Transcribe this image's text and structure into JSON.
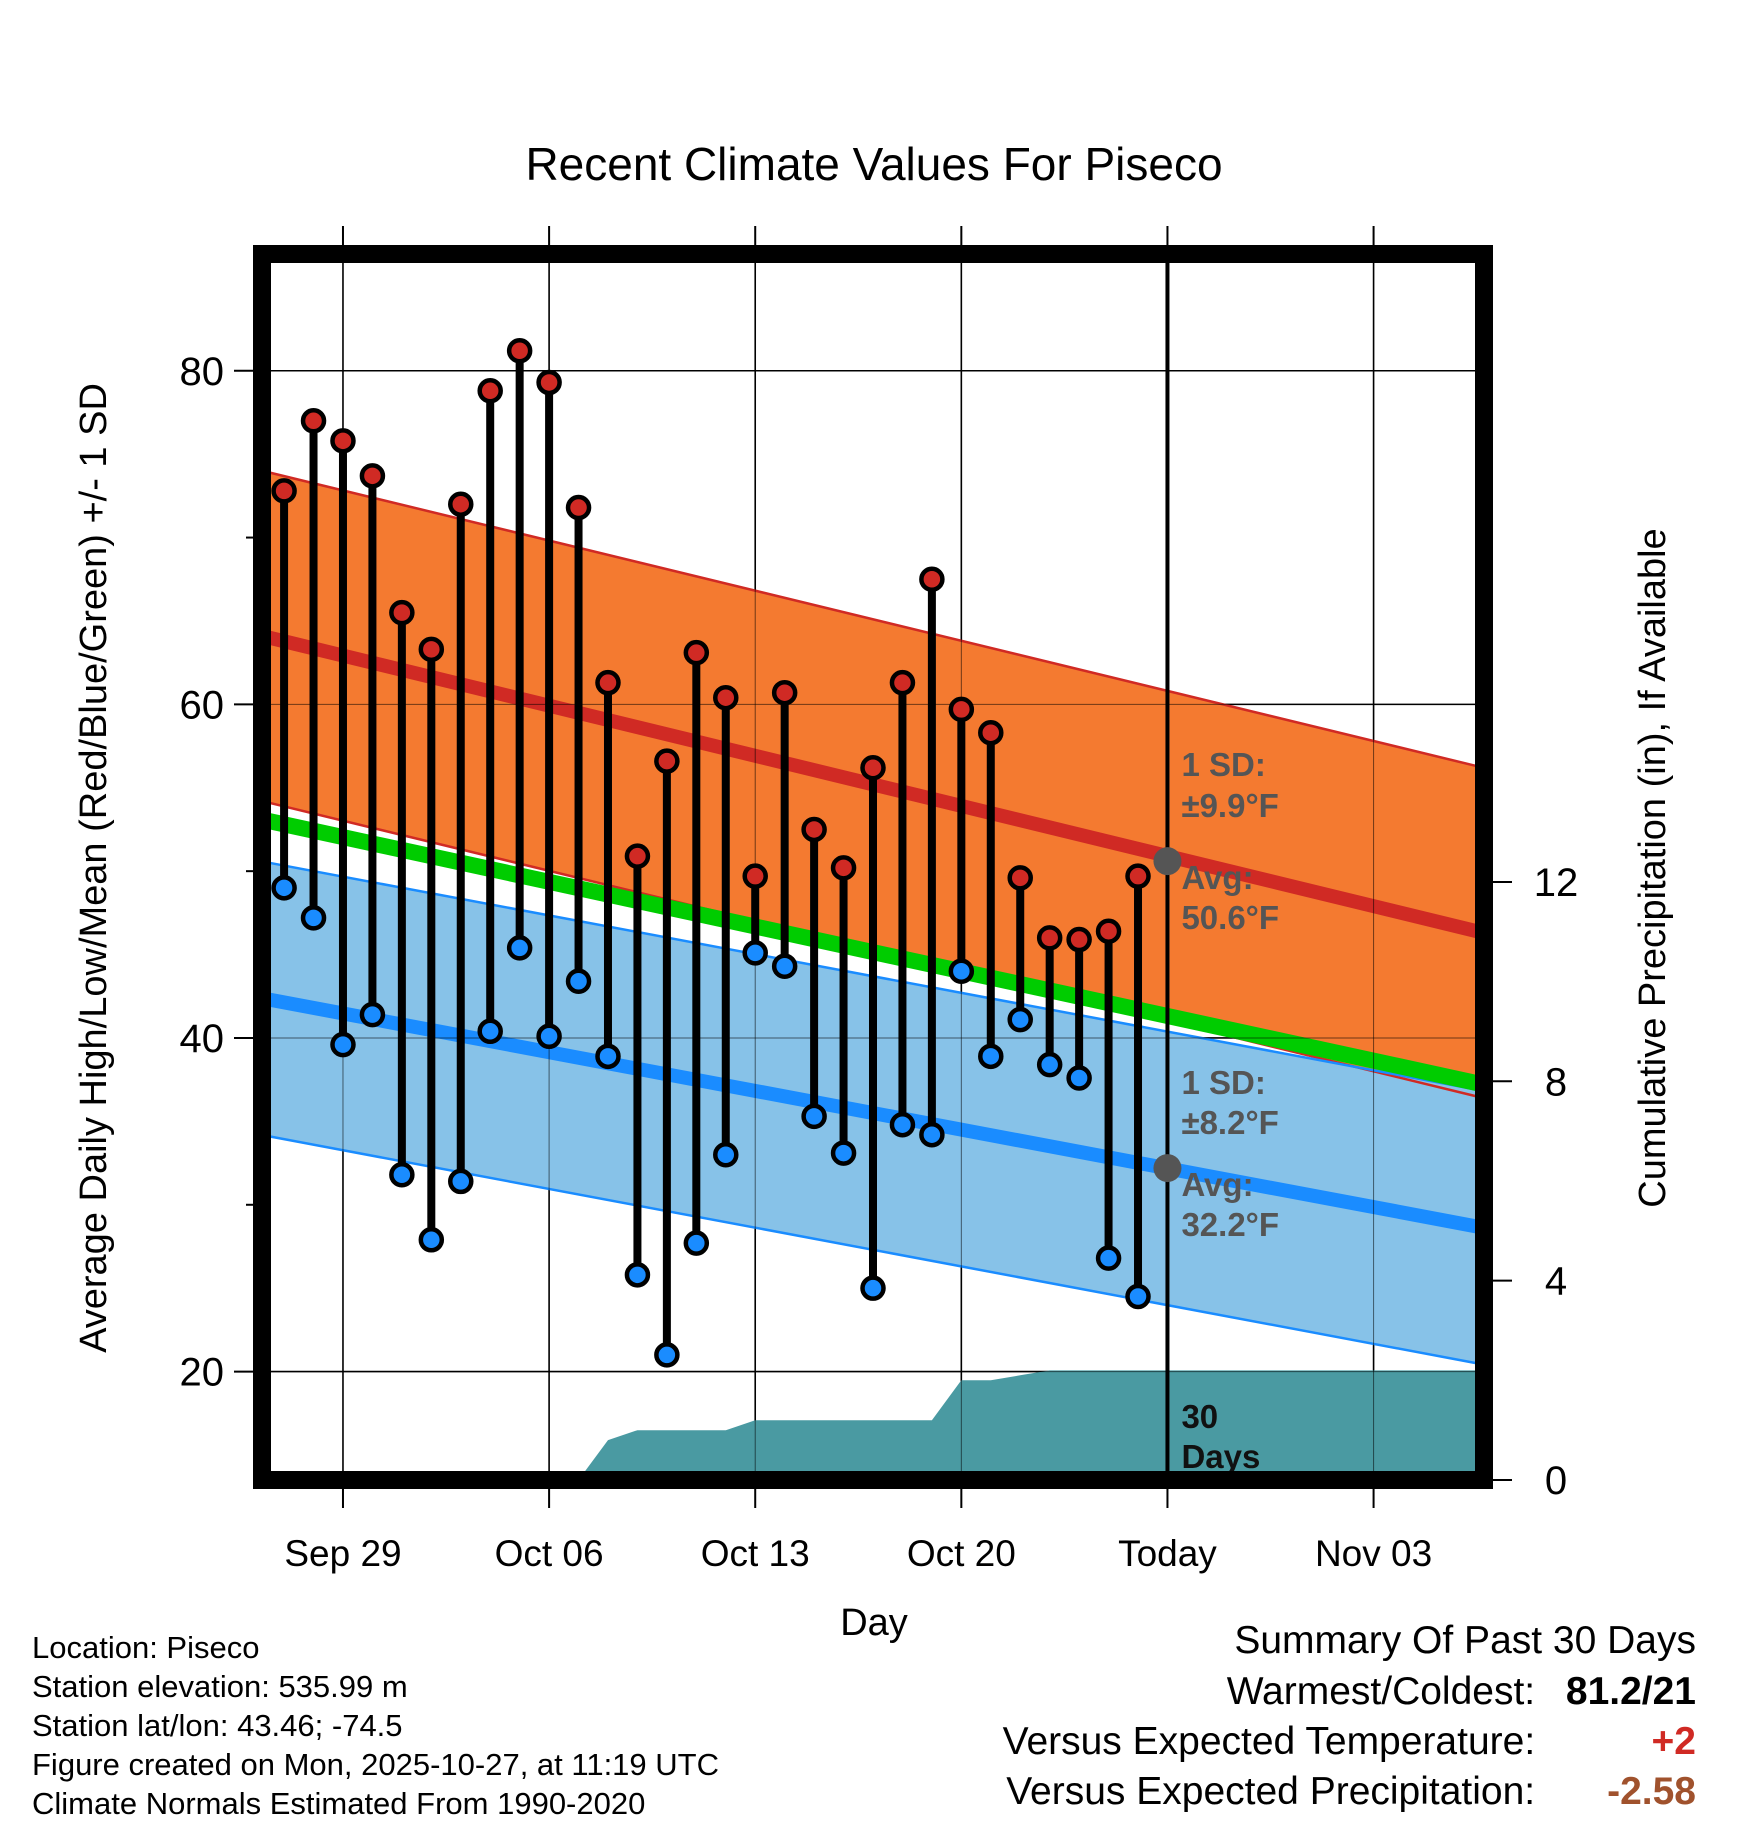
{
  "chart_data": {
    "type": "line",
    "title": "Recent Climate Values For Piseco",
    "xlabel": "Day",
    "ylabel": "Average Daily High/Low/Mean (Red/Blue/Green) +/- 1 SD",
    "ylabel_right": "Cumulative Precipitation (in), If Available",
    "ylim": [
      13.5,
      87
    ],
    "y_ticks": [
      20,
      40,
      60,
      80
    ],
    "y_minor_ticks": [
      30,
      50,
      70
    ],
    "y2lim": [
      0,
      24.6
    ],
    "y2_ticks": [
      0,
      4,
      8,
      12
    ],
    "xlim": [
      -2.75,
      38.75
    ],
    "x_ticks": [
      {
        "day": 0,
        "label": "Sep 29"
      },
      {
        "day": 7,
        "label": "Oct 06"
      },
      {
        "day": 14,
        "label": "Oct 13"
      },
      {
        "day": 21,
        "label": "Oct 20"
      },
      {
        "day": 28,
        "label": "Today"
      },
      {
        "day": 35,
        "label": "Nov 03"
      }
    ],
    "today_day": 28,
    "highs": [
      72.8,
      77.0,
      75.8,
      73.7,
      65.5,
      63.3,
      72.0,
      78.8,
      81.2,
      79.3,
      71.8,
      61.3,
      50.9,
      56.6,
      63.1,
      60.4,
      49.7,
      60.7,
      52.5,
      50.2,
      56.2,
      61.3,
      67.5,
      59.7,
      58.3,
      49.6,
      46.0,
      45.9,
      46.4,
      49.7
    ],
    "lows": [
      49.0,
      47.2,
      39.6,
      41.4,
      31.8,
      27.9,
      31.4,
      40.4,
      45.4,
      40.1,
      43.4,
      38.9,
      25.8,
      21.0,
      27.7,
      33.0,
      45.1,
      44.3,
      35.3,
      33.1,
      25.0,
      34.8,
      34.2,
      44.0,
      38.9,
      41.1,
      38.4,
      37.6,
      26.8,
      24.5
    ],
    "normal_high_avg": [
      64.0,
      46.4
    ],
    "normal_high_sd": 9.9,
    "normal_low_avg": [
      42.3,
      28.7
    ],
    "normal_low_sd": 8.2,
    "normal_mean": [
      53.0,
      37.3
    ],
    "precip_x": [
      -2.5,
      8,
      9,
      10,
      11,
      12,
      13,
      14,
      15,
      16,
      17,
      18,
      19,
      20,
      21,
      22,
      23,
      24,
      25,
      26,
      27,
      28,
      38.5
    ],
    "precip_cum": [
      0,
      0,
      0.8,
      1.0,
      1.0,
      1.0,
      1.0,
      1.2,
      1.2,
      1.2,
      1.2,
      1.2,
      1.2,
      1.2,
      2.0,
      2.0,
      2.1,
      2.2,
      2.2,
      2.2,
      2.2,
      2.2,
      2.2
    ],
    "annotations": {
      "high_sd_title": "1 SD:",
      "high_sd_value": "±9.9°F",
      "high_avg_title": "Avg:",
      "high_avg_value": "50.6°F",
      "high_avg_point": 50.6,
      "low_sd_title": "1 SD:",
      "low_sd_value": "±8.2°F",
      "low_avg_title": "Avg:",
      "low_avg_value": "32.2°F",
      "low_avg_point": 32.2,
      "days_line1": "30",
      "days_line2": "Days"
    },
    "colors": {
      "high_band": "#f47a30",
      "high_line": "#d02a24",
      "low_band": "#87c2e8",
      "low_line": "#1a8cff",
      "mean_line": "#00cc00",
      "precip": "#4a9aa2",
      "high_dot": "#d02a24",
      "low_dot": "#1a8cff",
      "annotation": "#555555",
      "avg_point": "#555555"
    }
  },
  "footer": {
    "location": "Location: Piseco",
    "elevation": "Station elevation: 535.99 m",
    "latlon": "Station lat/lon: 43.46; -74.5",
    "created": "Figure created on Mon, 2025-10-27, at 11:19 UTC",
    "normals": "Climate Normals Estimated From 1990-2020"
  },
  "summary": {
    "title": "Summary Of Past 30 Days",
    "warmest_label": "Warmest/Coldest:",
    "warmest_value": "81.2/21",
    "temp_label": "Versus Expected Temperature:",
    "temp_value": "+2",
    "temp_color": "#d02a24",
    "precip_label": "Versus Expected Precipitation:",
    "precip_value": "-2.58",
    "precip_color": "#a0522d"
  }
}
